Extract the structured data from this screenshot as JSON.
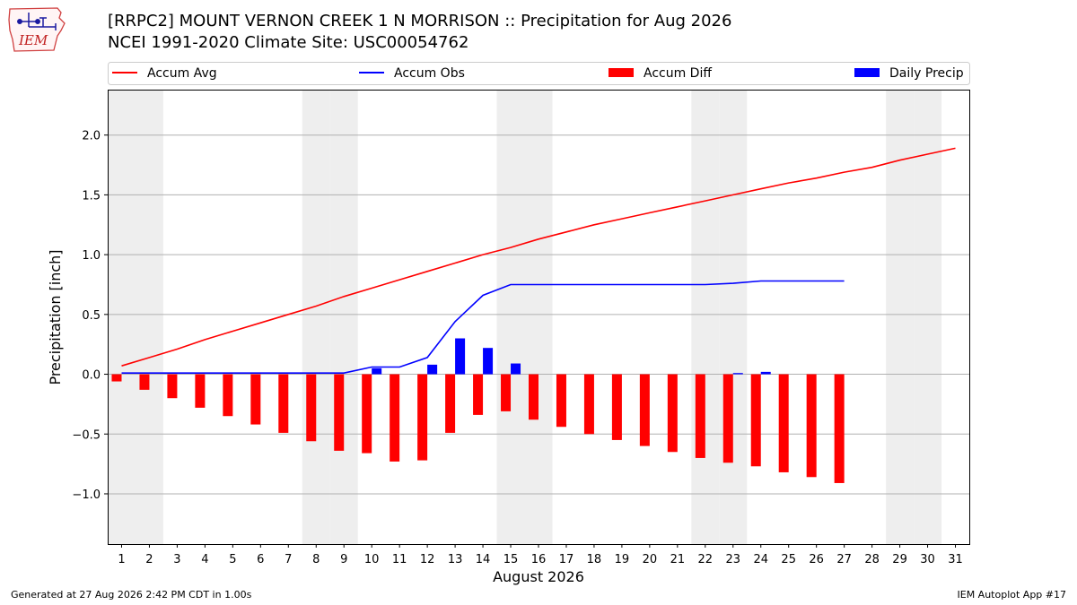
{
  "header": {
    "logo_text": "IEM",
    "title_line1": "[RRPC2] MOUNT VERNON CREEK 1 N MORRISON :: Precipitation for Aug 2026",
    "title_line2": "NCEI 1991-2020 Climate Site: USC00054762"
  },
  "footer": {
    "generated": "Generated at 27 Aug 2026 2:42 PM CDT in 1.00s",
    "app": "IEM Autoplot App #17"
  },
  "colors": {
    "avg": "#ff0000",
    "obs": "#0000ff",
    "diff": "#ff0000",
    "daily": "#0000ff",
    "weekend": "#eeeeee",
    "grid": "#b0b0b0"
  },
  "chart_data": {
    "type": "bar",
    "xlabel": "August 2026",
    "ylabel": "Precipitation [inch]",
    "ylim": [
      -1.42,
      2.38
    ],
    "xlim": [
      0.5,
      31.5
    ],
    "yticks": [
      -1.0,
      -0.5,
      0.0,
      0.5,
      1.0,
      1.5,
      2.0
    ],
    "ytick_labels": [
      "−1.0",
      "−0.5",
      "0.0",
      "0.5",
      "1.0",
      "1.5",
      "2.0"
    ],
    "days": [
      1,
      2,
      3,
      4,
      5,
      6,
      7,
      8,
      9,
      10,
      11,
      12,
      13,
      14,
      15,
      16,
      17,
      18,
      19,
      20,
      21,
      22,
      23,
      24,
      25,
      26,
      27,
      28,
      29,
      30,
      31
    ],
    "weekend_days": [
      1,
      2,
      8,
      9,
      15,
      16,
      22,
      23,
      29,
      30
    ],
    "grid": true,
    "legend_position": "top",
    "series": [
      {
        "name": "Accum Avg",
        "kind": "line",
        "values": [
          0.07,
          0.14,
          0.21,
          0.29,
          0.36,
          0.43,
          0.5,
          0.57,
          0.65,
          0.72,
          0.79,
          0.86,
          0.93,
          1.0,
          1.06,
          1.13,
          1.19,
          1.25,
          1.3,
          1.35,
          1.4,
          1.45,
          1.5,
          1.55,
          1.6,
          1.64,
          1.69,
          1.73,
          1.79,
          1.84,
          1.89
        ]
      },
      {
        "name": "Accum Obs",
        "kind": "line",
        "values": [
          0.01,
          0.01,
          0.01,
          0.01,
          0.01,
          0.01,
          0.01,
          0.01,
          0.01,
          0.06,
          0.06,
          0.14,
          0.44,
          0.66,
          0.75,
          0.75,
          0.75,
          0.75,
          0.75,
          0.75,
          0.75,
          0.75,
          0.76,
          0.78,
          0.78,
          0.78,
          0.78
        ]
      },
      {
        "name": "Accum Diff",
        "kind": "bar",
        "values": [
          -0.06,
          -0.13,
          -0.2,
          -0.28,
          -0.35,
          -0.42,
          -0.49,
          -0.56,
          -0.64,
          -0.66,
          -0.73,
          -0.72,
          -0.49,
          -0.34,
          -0.31,
          -0.38,
          -0.44,
          -0.5,
          -0.55,
          -0.6,
          -0.65,
          -0.7,
          -0.74,
          -0.77,
          -0.82,
          -0.86,
          -0.91
        ]
      },
      {
        "name": "Daily Precip",
        "kind": "bar",
        "values": [
          0,
          0,
          0,
          0,
          0,
          0,
          0,
          0,
          0,
          0.05,
          0,
          0.08,
          0.3,
          0.22,
          0.09,
          0,
          0,
          0,
          0,
          0,
          0,
          0,
          0.01,
          0.02,
          0,
          0,
          0
        ]
      }
    ]
  }
}
